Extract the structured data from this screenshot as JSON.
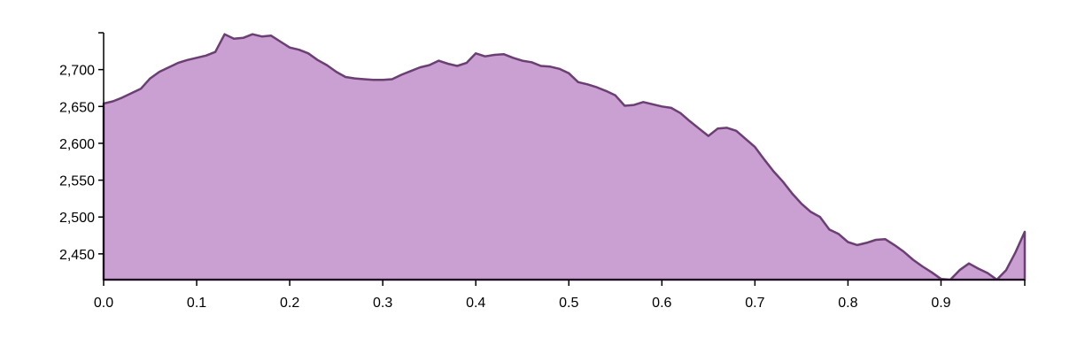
{
  "chart_data": {
    "type": "area",
    "title": "",
    "xlabel": "",
    "ylabel": "",
    "xlim": [
      0,
      0.99
    ],
    "ylim": [
      2415,
      2750
    ],
    "x_ticks": [
      0.0,
      0.1,
      0.2,
      0.3,
      0.4,
      0.5,
      0.6,
      0.7,
      0.8,
      0.9
    ],
    "x_tick_labels": [
      "0.0",
      "0.1",
      "0.2",
      "0.3",
      "0.4",
      "0.5",
      "0.6",
      "0.7",
      "0.8",
      "0.9"
    ],
    "y_ticks": [
      2450,
      2500,
      2550,
      2600,
      2650,
      2700
    ],
    "y_tick_labels": [
      "2,450",
      "2,500",
      "2,550",
      "2,600",
      "2,650",
      "2,700"
    ],
    "grid": false,
    "colors": {
      "fill": "#c9a0d1",
      "stroke": "#6b3f74"
    },
    "series": [
      {
        "x": [
          0.0,
          0.01,
          0.02,
          0.03,
          0.04,
          0.05,
          0.06,
          0.07,
          0.08,
          0.09,
          0.1,
          0.11,
          0.12,
          0.13,
          0.14,
          0.15,
          0.16,
          0.17,
          0.18,
          0.19,
          0.2,
          0.21,
          0.22,
          0.23,
          0.24,
          0.25,
          0.26,
          0.27,
          0.28,
          0.29,
          0.3,
          0.31,
          0.32,
          0.33,
          0.34,
          0.35,
          0.36,
          0.37,
          0.38,
          0.39,
          0.4,
          0.41,
          0.42,
          0.43,
          0.44,
          0.45,
          0.46,
          0.47,
          0.48,
          0.49,
          0.5,
          0.51,
          0.52,
          0.53,
          0.54,
          0.55,
          0.56,
          0.57,
          0.58,
          0.59,
          0.6,
          0.61,
          0.62,
          0.63,
          0.64,
          0.65,
          0.66,
          0.67,
          0.68,
          0.69,
          0.7,
          0.71,
          0.72,
          0.73,
          0.74,
          0.75,
          0.76,
          0.77,
          0.78,
          0.79,
          0.8,
          0.81,
          0.82,
          0.83,
          0.84,
          0.85,
          0.86,
          0.87,
          0.88,
          0.89,
          0.9,
          0.91,
          0.92,
          0.93,
          0.94,
          0.95,
          0.96,
          0.97,
          0.98,
          0.99
        ],
        "values": [
          2654,
          2657,
          2662,
          2668,
          2674,
          2688,
          2697,
          2703,
          2709,
          2713,
          2716,
          2719,
          2724,
          2748,
          2742,
          2743,
          2748,
          2745,
          2746,
          2738,
          2730,
          2727,
          2722,
          2713,
          2706,
          2697,
          2690,
          2688,
          2687,
          2686,
          2686,
          2687,
          2693,
          2698,
          2703,
          2706,
          2712,
          2708,
          2705,
          2709,
          2722,
          2718,
          2720,
          2721,
          2716,
          2712,
          2710,
          2705,
          2704,
          2701,
          2695,
          2683,
          2680,
          2676,
          2671,
          2665,
          2651,
          2652,
          2656,
          2653,
          2650,
          2648,
          2641,
          2630,
          2620,
          2610,
          2620,
          2621,
          2617,
          2606,
          2595,
          2578,
          2562,
          2548,
          2532,
          2518,
          2507,
          2500,
          2483,
          2477,
          2466,
          2462,
          2465,
          2469,
          2470,
          2462,
          2453,
          2442,
          2433,
          2425,
          2416,
          2412,
          2428,
          2437,
          2430,
          2424,
          2415,
          2428,
          2452,
          2480
        ]
      }
    ]
  }
}
